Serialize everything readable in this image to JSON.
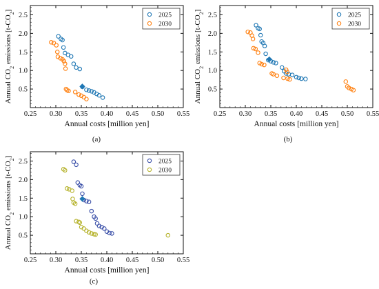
{
  "panels_meta": {
    "xlabel": "Annual costs [million yen]",
    "ylabel_main": "Annual CO",
    "ylabel_sub": "2",
    "ylabel_rest": " emissions [t-CO",
    "ylabel_sub2": "2",
    "ylabel_end": "]"
  },
  "chart_data": [
    {
      "type": "scatter",
      "panel_label": "(a)",
      "xlabel": "Annual costs [million yen]",
      "ylabel": "Annual CO2 emissions [t-CO2]",
      "xlim": [
        0.25,
        0.55
      ],
      "ylim": [
        0.0,
        2.75
      ],
      "xticks": [
        "0.25",
        "0.30",
        "0.35",
        "0.40",
        "0.45",
        "0.50",
        "0.55"
      ],
      "yticks": [
        "0.5",
        "1.0",
        "1.5",
        "2.0",
        "2.5"
      ],
      "legend_position": "top-right",
      "series": [
        {
          "name": "2025",
          "color": "#1f77b4",
          "points": [
            [
              0.305,
              1.92
            ],
            [
              0.31,
              1.85
            ],
            [
              0.313,
              1.82
            ],
            [
              0.315,
              1.62
            ],
            [
              0.318,
              1.47
            ],
            [
              0.324,
              1.42
            ],
            [
              0.33,
              1.38
            ],
            [
              0.335,
              1.18
            ],
            [
              0.34,
              1.08
            ],
            [
              0.347,
              1.04
            ],
            [
              0.352,
              0.56
            ],
            [
              0.36,
              0.48
            ],
            [
              0.365,
              0.46
            ],
            [
              0.37,
              0.44
            ],
            [
              0.375,
              0.41
            ],
            [
              0.38,
              0.37
            ],
            [
              0.385,
              0.33
            ],
            [
              0.392,
              0.27
            ]
          ]
        },
        {
          "name": "2030",
          "color": "#ff7f0e",
          "points": [
            [
              0.291,
              1.76
            ],
            [
              0.296,
              1.74
            ],
            [
              0.301,
              1.68
            ],
            [
              0.303,
              1.5
            ],
            [
              0.304,
              1.37
            ],
            [
              0.309,
              1.33
            ],
            [
              0.313,
              1.3
            ],
            [
              0.316,
              1.25
            ],
            [
              0.318,
              1.18
            ],
            [
              0.319,
              1.05
            ],
            [
              0.32,
              0.5
            ],
            [
              0.322,
              0.47
            ],
            [
              0.325,
              0.45
            ],
            [
              0.338,
              0.42
            ],
            [
              0.345,
              0.35
            ],
            [
              0.35,
              0.32
            ],
            [
              0.355,
              0.28
            ],
            [
              0.36,
              0.23
            ]
          ]
        }
      ],
      "highlight": [
        0.352,
        0.57
      ]
    },
    {
      "type": "scatter",
      "panel_label": "(b)",
      "xlabel": "Annual costs [million yen]",
      "ylabel": "Annual CO2 emissions [t-CO2]",
      "xlim": [
        0.25,
        0.55
      ],
      "ylim": [
        0.0,
        2.75
      ],
      "xticks": [
        "0.25",
        "0.30",
        "0.35",
        "0.40",
        "0.45",
        "0.50",
        "0.55"
      ],
      "yticks": [
        "0.5",
        "1.0",
        "1.5",
        "2.0",
        "2.5"
      ],
      "legend_position": "top-right",
      "series": [
        {
          "name": "2025",
          "color": "#1f77b4",
          "points": [
            [
              0.321,
              2.22
            ],
            [
              0.325,
              2.14
            ],
            [
              0.328,
              2.12
            ],
            [
              0.33,
              1.95
            ],
            [
              0.332,
              1.78
            ],
            [
              0.335,
              1.74
            ],
            [
              0.338,
              1.66
            ],
            [
              0.34,
              1.45
            ],
            [
              0.345,
              1.28
            ],
            [
              0.35,
              1.25
            ],
            [
              0.355,
              1.22
            ],
            [
              0.36,
              1.2
            ],
            [
              0.372,
              1.08
            ],
            [
              0.376,
              0.98
            ],
            [
              0.38,
              0.92
            ],
            [
              0.385,
              0.9
            ],
            [
              0.392,
              0.88
            ],
            [
              0.4,
              0.82
            ],
            [
              0.405,
              0.8
            ],
            [
              0.41,
              0.78
            ],
            [
              0.418,
              0.77
            ]
          ]
        },
        {
          "name": "2030",
          "color": "#ff7f0e",
          "points": [
            [
              0.305,
              2.04
            ],
            [
              0.31,
              2.02
            ],
            [
              0.313,
              1.94
            ],
            [
              0.315,
              1.85
            ],
            [
              0.316,
              1.6
            ],
            [
              0.32,
              1.58
            ],
            [
              0.325,
              1.48
            ],
            [
              0.328,
              1.2
            ],
            [
              0.332,
              1.17
            ],
            [
              0.337,
              1.15
            ],
            [
              0.352,
              0.92
            ],
            [
              0.355,
              0.9
            ],
            [
              0.362,
              0.86
            ],
            [
              0.38,
              1.02
            ],
            [
              0.382,
              0.96
            ],
            [
              0.375,
              0.8
            ],
            [
              0.383,
              0.78
            ],
            [
              0.387,
              0.76
            ],
            [
              0.497,
              0.7
            ],
            [
              0.5,
              0.57
            ],
            [
              0.503,
              0.53
            ],
            [
              0.508,
              0.5
            ],
            [
              0.512,
              0.47
            ]
          ]
        }
      ],
      "highlight": [
        0.347,
        1.3
      ]
    },
    {
      "type": "scatter",
      "panel_label": "(c)",
      "xlabel": "Annual costs [million yen]",
      "ylabel": "Annual CO2 emissions [t-CO2]",
      "xlim": [
        0.25,
        0.55
      ],
      "ylim": [
        0.0,
        2.75
      ],
      "xticks": [
        "0.25",
        "0.30",
        "0.35",
        "0.40",
        "0.45",
        "0.50",
        "0.55"
      ],
      "yticks": [
        "0.5",
        "1.0",
        "1.5",
        "2.0",
        "2.5"
      ],
      "legend_position": "top-right",
      "series": [
        {
          "name": "2025",
          "color": "#3a4fa8",
          "points": [
            [
              0.335,
              2.48
            ],
            [
              0.34,
              2.4
            ],
            [
              0.343,
              1.92
            ],
            [
              0.347,
              1.85
            ],
            [
              0.35,
              1.82
            ],
            [
              0.352,
              1.62
            ],
            [
              0.355,
              1.45
            ],
            [
              0.36,
              1.42
            ],
            [
              0.365,
              1.4
            ],
            [
              0.37,
              1.15
            ],
            [
              0.375,
              1.0
            ],
            [
              0.378,
              0.95
            ],
            [
              0.381,
              0.82
            ],
            [
              0.385,
              0.75
            ],
            [
              0.39,
              0.72
            ],
            [
              0.395,
              0.68
            ],
            [
              0.4,
              0.6
            ],
            [
              0.405,
              0.56
            ],
            [
              0.41,
              0.55
            ]
          ]
        },
        {
          "name": "2030",
          "color": "#b5b22a",
          "points": [
            [
              0.315,
              2.28
            ],
            [
              0.318,
              2.25
            ],
            [
              0.322,
              1.76
            ],
            [
              0.326,
              1.74
            ],
            [
              0.332,
              1.7
            ],
            [
              0.333,
              1.48
            ],
            [
              0.335,
              1.38
            ],
            [
              0.338,
              1.35
            ],
            [
              0.34,
              0.88
            ],
            [
              0.345,
              0.86
            ],
            [
              0.347,
              0.84
            ],
            [
              0.35,
              0.72
            ],
            [
              0.355,
              0.68
            ],
            [
              0.36,
              0.62
            ],
            [
              0.365,
              0.58
            ],
            [
              0.37,
              0.55
            ],
            [
              0.375,
              0.53
            ],
            [
              0.378,
              0.52
            ],
            [
              0.52,
              0.5
            ]
          ]
        }
      ],
      "highlight": [
        0.352,
        1.48
      ]
    }
  ],
  "colors": {
    "highlight": "#1f77b4",
    "frame": "#111111"
  }
}
